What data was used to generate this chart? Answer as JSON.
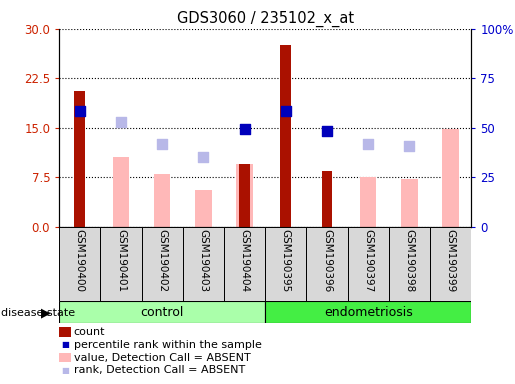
{
  "title": "GDS3060 / 235102_x_at",
  "samples": [
    "GSM190400",
    "GSM190401",
    "GSM190402",
    "GSM190403",
    "GSM190404",
    "GSM190395",
    "GSM190396",
    "GSM190397",
    "GSM190398",
    "GSM190399"
  ],
  "count_values": [
    20.5,
    null,
    null,
    null,
    9.5,
    27.5,
    8.5,
    null,
    null,
    null
  ],
  "percentile_rank_values": [
    17.5,
    null,
    null,
    null,
    14.8,
    17.5,
    14.5,
    null,
    null,
    null
  ],
  "value_absent": [
    null,
    10.5,
    8.0,
    5.5,
    9.5,
    null,
    null,
    7.5,
    7.2,
    14.8
  ],
  "rank_absent": [
    null,
    15.8,
    12.5,
    10.5,
    null,
    null,
    null,
    12.5,
    12.2,
    null
  ],
  "left_ylim": [
    0,
    30
  ],
  "right_ylim": [
    0,
    100
  ],
  "left_yticks": [
    0,
    7.5,
    15,
    22.5,
    30
  ],
  "right_yticks": [
    0,
    25,
    50,
    75,
    100
  ],
  "right_yticklabels": [
    "0",
    "25",
    "50",
    "75",
    "100%"
  ],
  "colors": {
    "count": "#aa1100",
    "percentile_rank": "#0000bb",
    "value_absent": "#ffb8b8",
    "rank_absent": "#b8b8e8",
    "left_axis_color": "#cc2200",
    "right_axis_color": "#0000cc"
  },
  "bar_width": 0.4,
  "dot_size": 55,
  "control_color": "#aaffaa",
  "endometriosis_color": "#44ee44",
  "control_label": "control",
  "endometriosis_label": "endometriosis",
  "disease_state_label": "disease state",
  "legend_items": [
    {
      "color": "#aa1100",
      "type": "bar",
      "label": "count"
    },
    {
      "color": "#0000bb",
      "type": "square",
      "label": "percentile rank within the sample"
    },
    {
      "color": "#ffb8b8",
      "type": "bar",
      "label": "value, Detection Call = ABSENT"
    },
    {
      "color": "#b8b8e8",
      "type": "square",
      "label": "rank, Detection Call = ABSENT"
    }
  ]
}
